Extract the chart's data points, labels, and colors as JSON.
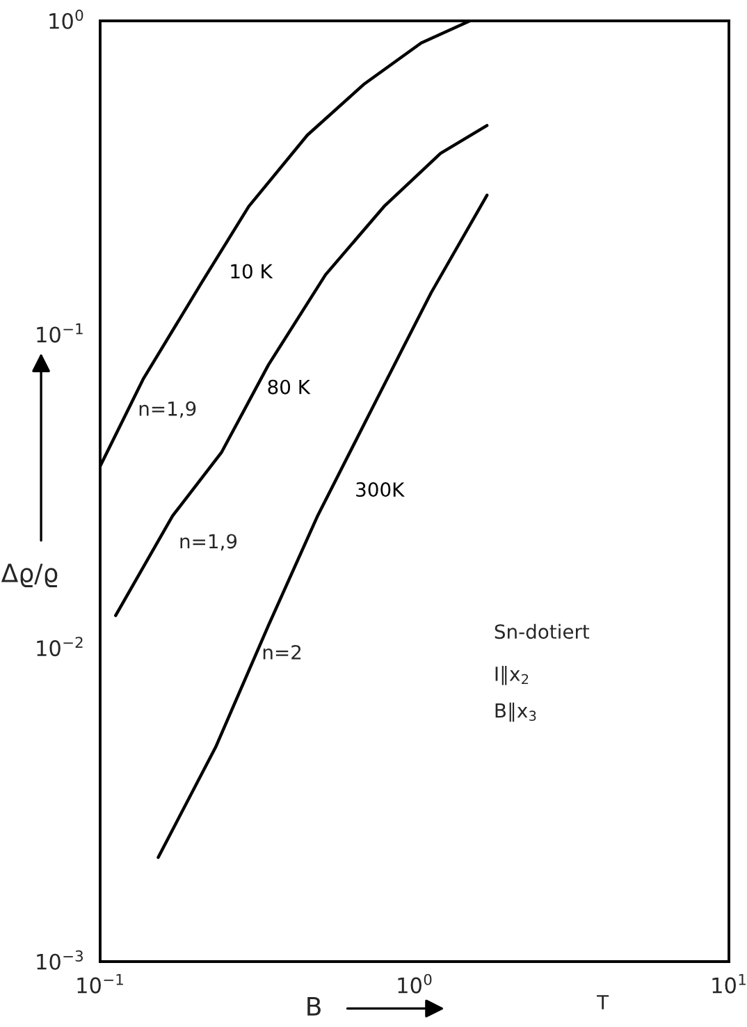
{
  "chart_data": {
    "type": "line",
    "xlabel": "B",
    "ylabel": "Δϱ/ϱ",
    "log": "xy",
    "grid": false,
    "series": [
      {
        "name": "10 K",
        "color": "#000000",
        "x": [
          0.1,
          0.137,
          0.21,
          0.297,
          0.456,
          0.693,
          1.05,
          1.5
        ],
        "values": [
          0.038,
          0.072,
          0.146,
          0.256,
          0.432,
          0.63,
          0.85,
          1.0
        ]
      },
      {
        "name": "80 K",
        "color": "#000000",
        "x": [
          0.112,
          0.17,
          0.243,
          0.343,
          0.521,
          0.8,
          1.21,
          1.7
        ],
        "values": [
          0.0127,
          0.0264,
          0.042,
          0.08,
          0.155,
          0.256,
          0.378,
          0.464
        ]
      },
      {
        "name": "300K",
        "color": "#000000",
        "x": [
          0.153,
          0.233,
          0.343,
          0.49,
          0.745,
          1.13,
          1.7
        ],
        "values": [
          0.00215,
          0.00483,
          0.0118,
          0.0262,
          0.06,
          0.136,
          0.278
        ]
      }
    ],
    "xlim": [
      0.1,
      10
    ],
    "ylim": [
      0.001,
      1
    ],
    "xticks": [
      {
        "value": 0.1,
        "label": "10$^{−1}$"
      },
      {
        "value": 1,
        "label": "10$^{0}$"
      },
      {
        "value": 10,
        "label": "10$^{1}$"
      }
    ],
    "yticks": [
      {
        "value": 0.001,
        "label": "10$^{−3}$"
      },
      {
        "value": 0.01,
        "label": "10$^{−2}$"
      },
      {
        "value": 0.1,
        "label": "10$^{−1}$"
      },
      {
        "value": 1,
        "label": "10$^{0}$"
      }
    ],
    "annotations": [
      "n=1,9",
      "n=1,9",
      "n=2",
      "Sn-dotiert",
      "I∥x$_{2}$",
      "B∥x$_{3}$",
      "T"
    ]
  }
}
